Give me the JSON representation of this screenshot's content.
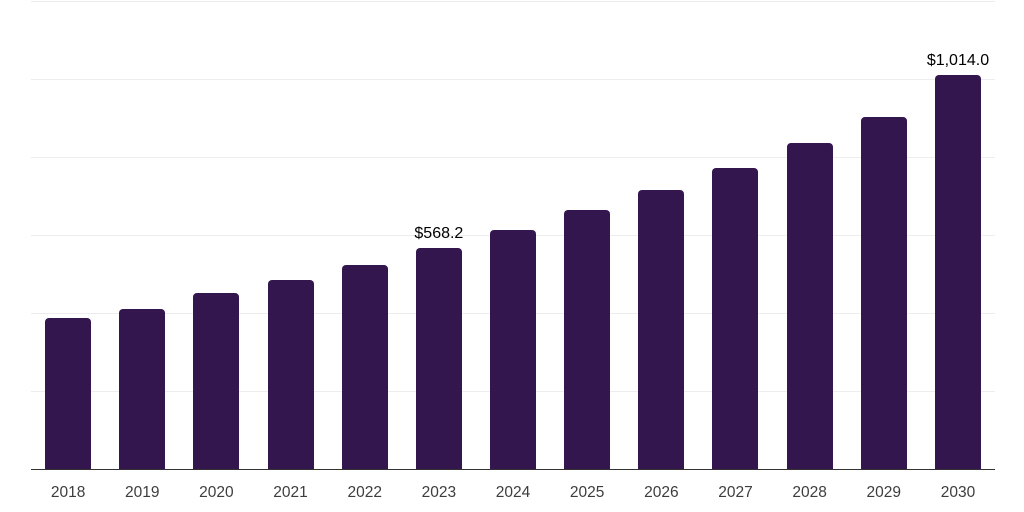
{
  "page": {
    "background": "#ffffff"
  },
  "chart_data": {
    "type": "bar",
    "title": "",
    "xlabel": "",
    "ylabel": "",
    "categories": [
      "2018",
      "2019",
      "2020",
      "2021",
      "2022",
      "2023",
      "2024",
      "2025",
      "2026",
      "2027",
      "2028",
      "2029",
      "2030"
    ],
    "values": [
      390,
      413,
      455,
      488,
      526,
      568.2,
      615,
      666,
      719,
      774,
      838,
      904,
      1014
    ],
    "data_labels": [
      "",
      "",
      "",
      "",
      "",
      "$568.2",
      "",
      "",
      "",
      "",
      "",
      "",
      "$1,014.0"
    ],
    "ylim": [
      0,
      1200
    ],
    "grid_step": 200,
    "grid": true,
    "legend": false,
    "colors": {
      "bar": "#33164e",
      "gridline": "#ededed",
      "axis": "#333333",
      "data_label": "#000000",
      "tick_label": "#3d3d3d"
    }
  }
}
